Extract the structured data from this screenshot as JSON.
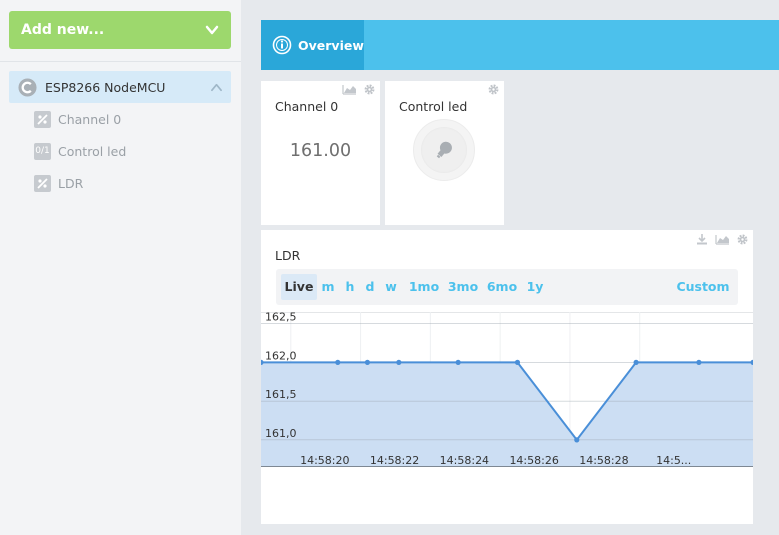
{
  "sidebar": {
    "add_new_label": "Add new...",
    "device_name": "ESP8266 NodeMCU",
    "widgets": [
      {
        "label": "Channel 0",
        "icon": "slider-icon"
      },
      {
        "label": "Control led",
        "icon": "switch-icon",
        "icon_text": "0/1"
      },
      {
        "label": "LDR",
        "icon": "slider-icon"
      }
    ]
  },
  "header": {
    "tab_label": "Overview"
  },
  "cards": {
    "channel0": {
      "title": "Channel 0",
      "value": "161.00"
    },
    "control_led": {
      "title": "Control led"
    },
    "ldr": {
      "title": "LDR",
      "ranges": [
        "Live",
        "m",
        "h",
        "d",
        "w",
        "1mo",
        "3mo",
        "6mo",
        "1y"
      ],
      "active_range": "Live",
      "custom_label": "Custom"
    }
  },
  "colors": {
    "accent": "#4cc1ec",
    "accent_dark": "#2aa7d9",
    "add_button": "#9dd86d",
    "selected_device": "#d6eaf8",
    "series_fill": "#c9dcf2",
    "series_line": "#4a8fd8"
  },
  "chart_data": {
    "type": "area",
    "ytick_labels": [
      "162,5",
      "162,0",
      "161,5",
      "161,0"
    ],
    "yticks": [
      162.5,
      162.0,
      161.5,
      161.0
    ],
    "ylim": [
      160.65,
      162.65
    ],
    "xtick_labels": [
      "14:58:20",
      "14:58:22",
      "14:58:24",
      "14:58:26",
      "14:58:28",
      "14:5..."
    ],
    "xtick_values": [
      20,
      22,
      24,
      26,
      28,
      30
    ],
    "xlim": [
      18.0,
      32.1
    ],
    "series": [
      {
        "x": [
          18.0,
          20.2,
          21.05,
          21.95,
          23.65,
          25.35,
          27.05,
          28.75,
          30.55,
          32.1
        ],
        "values": [
          162,
          162,
          162,
          162,
          162,
          162,
          161,
          162,
          162,
          162
        ]
      }
    ],
    "grid": true
  }
}
